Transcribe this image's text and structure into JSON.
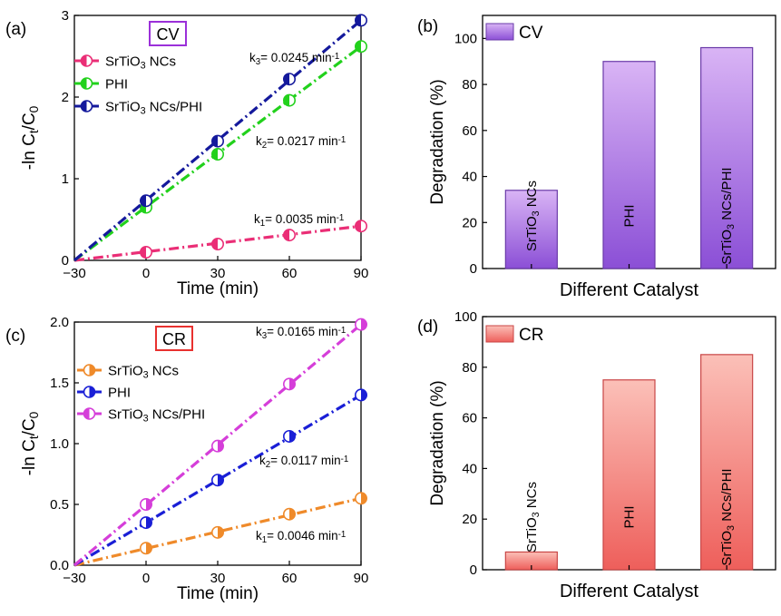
{
  "chart_data": [
    {
      "panel": "(a)",
      "type": "line",
      "dye_label": "CV",
      "dye_box_color": "#9b30d9",
      "xlabel": "Time (min)",
      "ylabel": "-ln Ct/C0",
      "xlim": [
        -30,
        90
      ],
      "ylim": [
        0,
        3
      ],
      "xticks": [
        -30,
        0,
        30,
        60,
        90
      ],
      "yticks": [
        0,
        1,
        2,
        3
      ],
      "x": [
        -30,
        0,
        30,
        60,
        90
      ],
      "series": [
        {
          "name": "SrTiO3 NCs",
          "color": "#ea2e76",
          "values": [
            0,
            0.1,
            0.2,
            0.31,
            0.42
          ],
          "fit": [
            0,
            0.105,
            0.21,
            0.315,
            0.42
          ],
          "rate": "k1= 0.0035 min-1"
        },
        {
          "name": "PHI",
          "color": "#22d11c",
          "values": [
            0,
            0.65,
            1.3,
            1.96,
            2.62
          ],
          "fit": [
            0,
            0.655,
            1.31,
            1.965,
            2.62
          ],
          "rate": "k2= 0.0217 min-1"
        },
        {
          "name": "SrTiO3 NCs/PHI",
          "color": "#14199c",
          "values": [
            0,
            0.73,
            1.46,
            2.22,
            2.94
          ],
          "fit": [
            0,
            0.735,
            1.47,
            2.205,
            2.94
          ],
          "rate": "k3= 0.0245 min-1"
        }
      ]
    },
    {
      "panel": "(b)",
      "type": "bar",
      "legend": "CV",
      "color_top": "#d9b4f5",
      "color_bottom": "#8b4fd6",
      "edge": "#6a3aa8",
      "xlabel": "Different Catalyst",
      "ylabel": "Degradation (%)",
      "ylim": [
        0,
        110
      ],
      "yticks": [
        0,
        20,
        40,
        60,
        80,
        100
      ],
      "categories": [
        "SrTiO3 NCs",
        "PHI",
        "SrTiO3 NCs/PHI"
      ],
      "values": [
        34,
        90,
        96
      ]
    },
    {
      "panel": "(c)",
      "type": "line",
      "dye_label": "CR",
      "dye_box_color": "#e8312f",
      "xlabel": "Time (min)",
      "ylabel": "-ln Ct/C0",
      "xlim": [
        -30,
        90
      ],
      "ylim": [
        0,
        2.0
      ],
      "xticks": [
        -30,
        0,
        30,
        60,
        90
      ],
      "yticks": [
        0.0,
        0.5,
        1.0,
        1.5,
        2.0
      ],
      "x": [
        -30,
        0,
        30,
        60,
        90
      ],
      "series": [
        {
          "name": "SrTiO3 NCs",
          "color": "#ef8a2a",
          "values": [
            0,
            0.14,
            0.27,
            0.42,
            0.55
          ],
          "fit": [
            0,
            0.1375,
            0.275,
            0.4125,
            0.55
          ],
          "rate": "k1= 0.0046 min-1"
        },
        {
          "name": "PHI",
          "color": "#1a1fd6",
          "values": [
            0,
            0.35,
            0.7,
            1.06,
            1.4
          ],
          "fit": [
            0,
            0.35,
            0.7,
            1.05,
            1.4
          ],
          "rate": "k2= 0.0117 min-1"
        },
        {
          "name": "SrTiO3 NCs/PHI",
          "color": "#d53ed9",
          "values": [
            0,
            0.5,
            0.98,
            1.49,
            1.98
          ],
          "fit": [
            0,
            0.495,
            0.99,
            1.485,
            1.98
          ],
          "rate": "k3= 0.0165 min-1"
        }
      ]
    },
    {
      "panel": "(d)",
      "type": "bar",
      "legend": "CR",
      "color_top": "#fbc0b8",
      "color_bottom": "#ee5f5b",
      "edge": "#c94545",
      "xlabel": "Different Catalyst",
      "ylabel": "Degradation (%)",
      "ylim": [
        0,
        100
      ],
      "yticks": [
        0,
        20,
        40,
        60,
        80,
        100
      ],
      "categories": [
        "SrTiO3 NCs",
        "PHI",
        "SrTiO3 NCs/PHI"
      ],
      "values": [
        7,
        75,
        85
      ]
    }
  ]
}
